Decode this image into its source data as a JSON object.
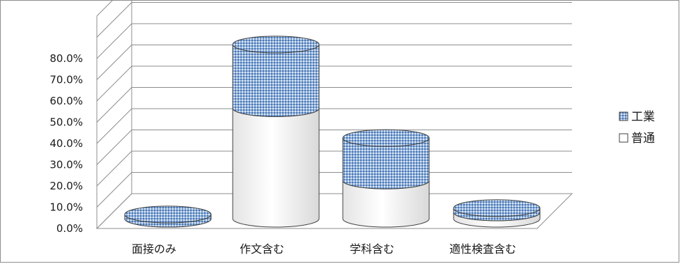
{
  "chart_data": {
    "type": "bar",
    "style": "3d-stacked-cylinder",
    "title": "",
    "xlabel": "",
    "ylabel": "",
    "ylim": [
      0,
      80
    ],
    "yticks": [
      "0.0%",
      "10.0%",
      "20.0%",
      "30.0%",
      "40.0%",
      "50.0%",
      "60.0%",
      "70.0%",
      "80.0%"
    ],
    "categories": [
      "面接のみ",
      "作文含む",
      "学科含む",
      "適性検査含む"
    ],
    "series": [
      {
        "name": "普通",
        "values": [
          0.0,
          52.0,
          18.0,
          3.0
        ],
        "color": "#f2f2f2"
      },
      {
        "name": "工業",
        "values": [
          2.0,
          30.0,
          20.0,
          2.0
        ],
        "color": "#8fb0d8"
      }
    ],
    "legend_position": "right",
    "legend_order": [
      "工業",
      "普通"
    ],
    "grid": true
  }
}
